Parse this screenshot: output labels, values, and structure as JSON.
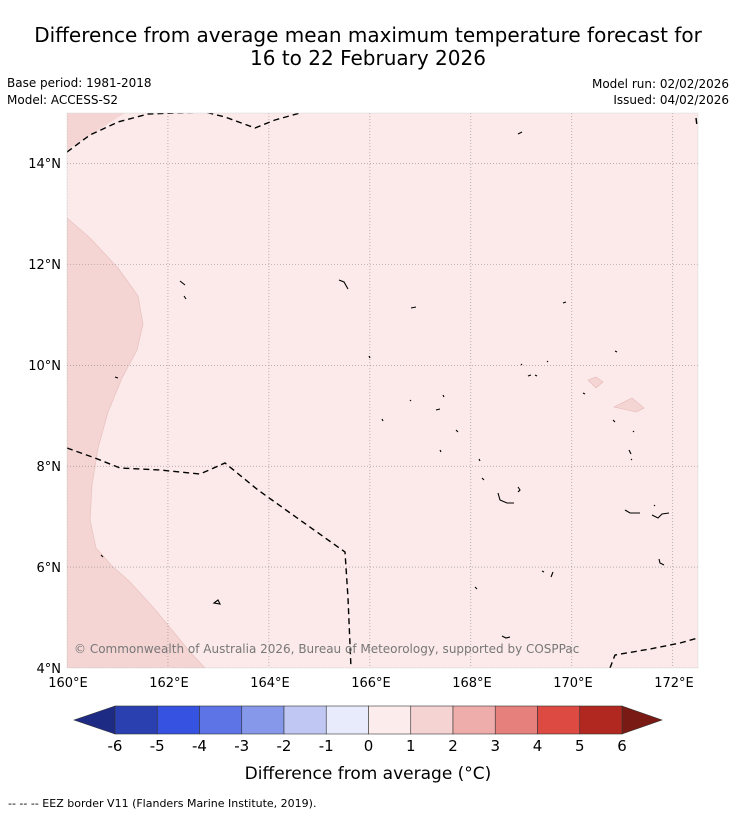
{
  "title_line1": "Difference from average mean maximum temperature forecast for",
  "title_line2": "16 to 22 February 2026",
  "base_period": "Base period: 1981-2018",
  "model": "Model: ACCESS-S2",
  "model_run": "Model run: 02/02/2026",
  "issued": "Issued: 04/02/2026",
  "map": {
    "lon_range": [
      160,
      172.5
    ],
    "lat_range": [
      4,
      15
    ],
    "lat_ticks": [
      "4°N",
      "6°N",
      "8°N",
      "10°N",
      "12°N",
      "14°N"
    ],
    "lon_ticks": [
      "160°E",
      "162°E",
      "164°E",
      "166°E",
      "168°E",
      "170°E",
      "172°E"
    ],
    "copyright": "© Commonwealth of Australia 2026, Bureau of Meteorology, supported by COSPPac"
  },
  "colorbar": {
    "labels": [
      "-6",
      "-5",
      "-4",
      "-3",
      "-2",
      "-1",
      "0",
      "1",
      "2",
      "3",
      "4",
      "5",
      "6"
    ],
    "colors": [
      "#2a3fb0",
      "#3552e0",
      "#5c74e6",
      "#8698ea",
      "#bfc7f2",
      "#e8ebfb",
      "#fcecec",
      "#f5d3d3",
      "#eeacab",
      "#e6807c",
      "#dc4a42",
      "#b0281f"
    ],
    "low_color": "#1e2b84",
    "high_color": "#7a1a14",
    "title": "Difference from average (°C)"
  },
  "footer": "-- -- -- EEZ border V11 (Flanders Marine Institute, 2019)."
}
